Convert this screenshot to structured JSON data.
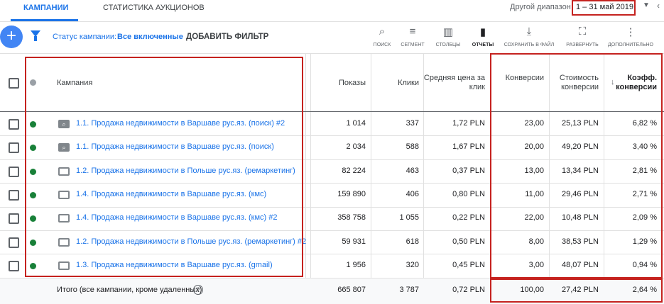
{
  "tabs": [
    "КАМПАНИИ",
    "СТАТИСТИКА АУКЦИОНОВ"
  ],
  "date_range": {
    "label": "Другой диапазон",
    "value": "1 – 31 май 2019"
  },
  "filter": {
    "label": "Статус кампании:",
    "value": "Все включенные",
    "add": "ДОБАВИТЬ ФИЛЬТР"
  },
  "toolbar": [
    "ПОИСК",
    "СЕГМЕНТ",
    "СТОЛБЦЫ",
    "ОТЧЕТЫ",
    "СОХРАНИТЬ В ФАЙЛ",
    "РАЗВЕРНУТЬ",
    "ДОПОЛНИТЕЛЬНО"
  ],
  "table": {
    "columns": [
      "Кампания",
      "Показы",
      "Клики",
      "Средняя цена за клик",
      "Конверсии",
      "Стоимость конверсии",
      "Коэфф. конверсии"
    ],
    "rows": [
      [
        "1.1. Продажа недвижимости в Варшаве рус.яз. (поиск) #2",
        "1 014",
        "337",
        "1,72 PLN",
        "23,00",
        "25,13 PLN",
        "6,82 %"
      ],
      [
        "1.1. Продажа недвижимости в Варшаве рус.яз. (поиск)",
        "2 034",
        "588",
        "1,67 PLN",
        "20,00",
        "49,20 PLN",
        "3,40 %"
      ],
      [
        "1.2. Продажа недвижимости в Польше рус.яз. (ремаркетинг)",
        "82 224",
        "463",
        "0,37 PLN",
        "13,00",
        "13,34 PLN",
        "2,81 %"
      ],
      [
        "1.4. Продажа недвижимости в Варшаве рус.яз. (кмс)",
        "159 890",
        "406",
        "0,80 PLN",
        "11,00",
        "29,46 PLN",
        "2,71 %"
      ],
      [
        "1.4. Продажа недвижимости в Варшаве рус.яз. (кмс) #2",
        "358 758",
        "1 055",
        "0,22 PLN",
        "22,00",
        "10,48 PLN",
        "2,09 %"
      ],
      [
        "1.2. Продажа недвижимости в Польше рус.яз. (ремаркетинг) #2",
        "59 931",
        "618",
        "0,50 PLN",
        "8,00",
        "38,53 PLN",
        "1,29 %"
      ],
      [
        "1.3. Продажа недвижимости в Варшаве рус.яз. (gmail)",
        "1 956",
        "320",
        "0,45 PLN",
        "3,00",
        "48,07 PLN",
        "0,94 %"
      ]
    ],
    "total": [
      "Итого (все кампании, кроме удаленных)",
      "665 807",
      "3 787",
      "0,72 PLN",
      "100,00",
      "27,42 PLN",
      "2,64 %"
    ]
  }
}
